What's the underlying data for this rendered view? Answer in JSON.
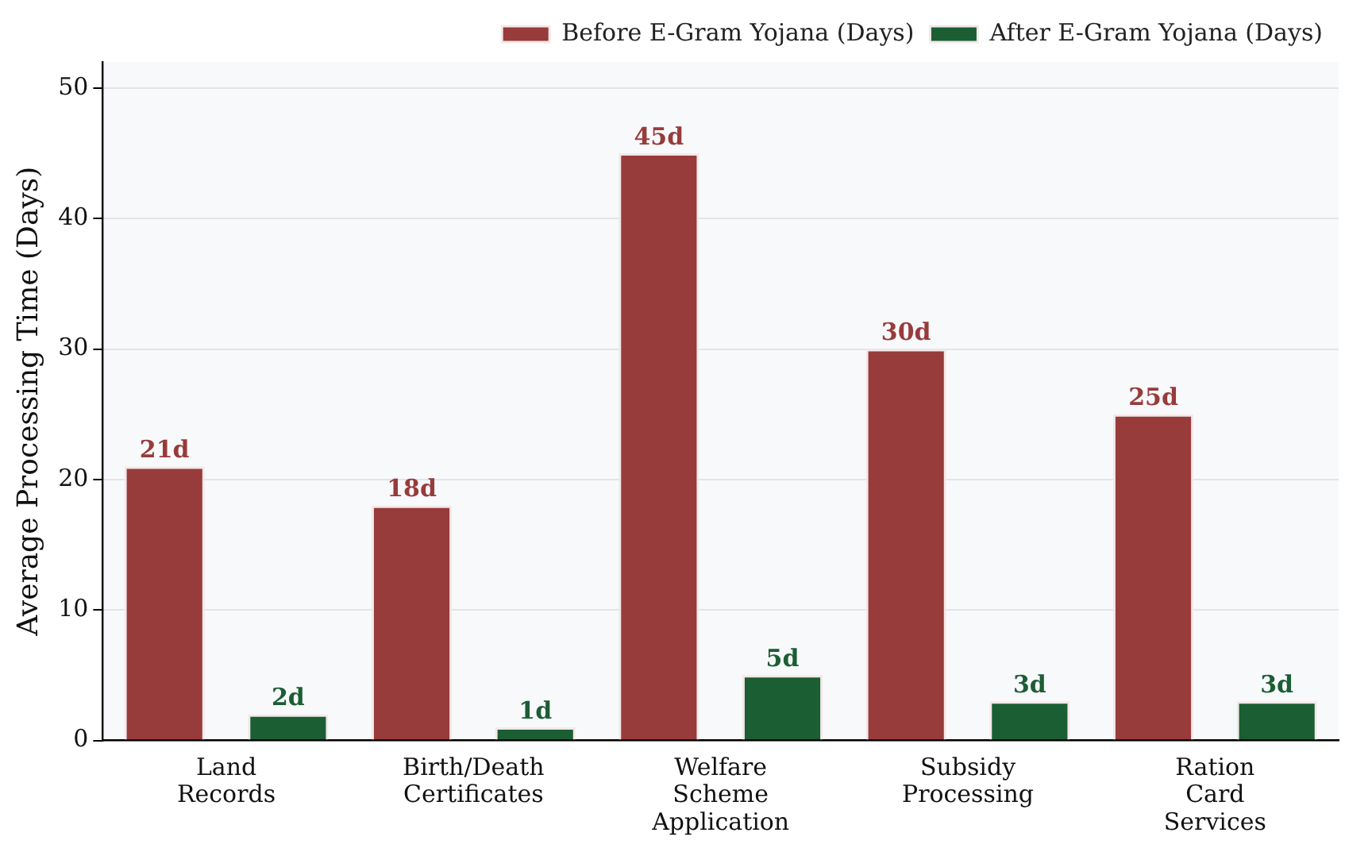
{
  "chart_data": {
    "type": "bar",
    "categories": [
      "Land\nRecords",
      "Birth/Death\nCertificates",
      "Welfare\nScheme\nApplication",
      "Subsidy\nProcessing",
      "Ration\nCard\nServices"
    ],
    "series": [
      {
        "name": "Before E-Gram Yojana (Days)",
        "color": "#983b3b",
        "values": [
          21,
          18,
          45,
          30,
          25
        ],
        "value_labels": [
          "21d",
          "18d",
          "45d",
          "30d",
          "25d"
        ]
      },
      {
        "name": "After E-Gram Yojana (Days)",
        "color": "#1b5e34",
        "values": [
          2,
          1,
          5,
          3,
          3
        ],
        "value_labels": [
          "2d",
          "1d",
          "5d",
          "3d",
          "3d"
        ]
      }
    ],
    "ylabel": "Average Processing Time (Days)",
    "ylim": [
      0,
      52
    ],
    "yticks": [
      0,
      10,
      20,
      30,
      40,
      50
    ],
    "grid": "y",
    "legend": "top right"
  }
}
